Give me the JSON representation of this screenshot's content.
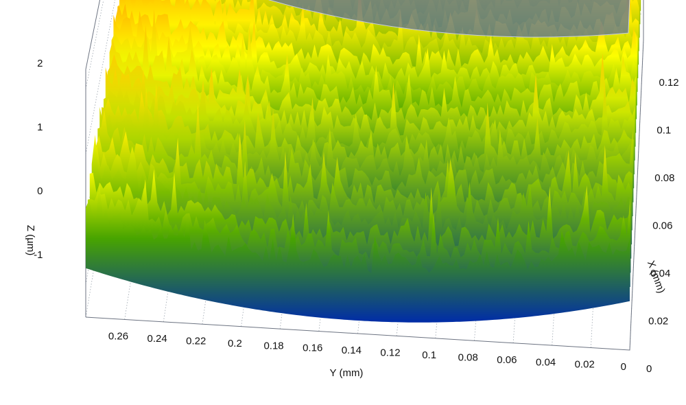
{
  "chart_data": {
    "type": "surface3d",
    "title": "",
    "axes": {
      "x": {
        "label": "X (mm)",
        "range": [
          0,
          0.13
        ],
        "ticks": [
          "0",
          "0.02",
          "0.04",
          "0.06",
          "0.08",
          "0.1",
          "0.12"
        ]
      },
      "y": {
        "label": "Y (mm)",
        "range": [
          0,
          0.28
        ],
        "ticks": [
          "0.26",
          "0.24",
          "0.22",
          "0.2",
          "0.18",
          "0.16",
          "0.14",
          "0.12",
          "0.1",
          "0.08",
          "0.06",
          "0.04",
          "0.02",
          "0"
        ]
      },
      "z": {
        "label": "Z (µm)",
        "range": [
          -1.5,
          2.3
        ],
        "ticks": [
          "2",
          "1",
          "0",
          "-1"
        ]
      }
    },
    "colormap": [
      "#0000ff",
      "#008000",
      "#ffff00",
      "#ff8c00",
      "#ff0000"
    ],
    "surface": {
      "description_values": "concave profile, trough along Y centre",
      "profile_z_at_x_front": [
        {
          "y": 0.27,
          "z": 0.3
        },
        {
          "y": 0.14,
          "z": -0.6
        },
        {
          "y": 0.0,
          "z": 0.2
        }
      ],
      "profile_z_at_x_back": [
        {
          "y": 0.27,
          "z": 1.4
        },
        {
          "y": 0.14,
          "z": 0.6
        },
        {
          "y": 0.0,
          "z": 1.3
        }
      ]
    },
    "cutting_plane": {
      "color": "#5a6e9e",
      "start_point": {
        "y": 0.265,
        "x": 0.125,
        "color": "#1a1aff"
      },
      "end_point": {
        "y": 0.005,
        "x": 0.125,
        "color": "#ff2020"
      }
    },
    "grid": true
  }
}
